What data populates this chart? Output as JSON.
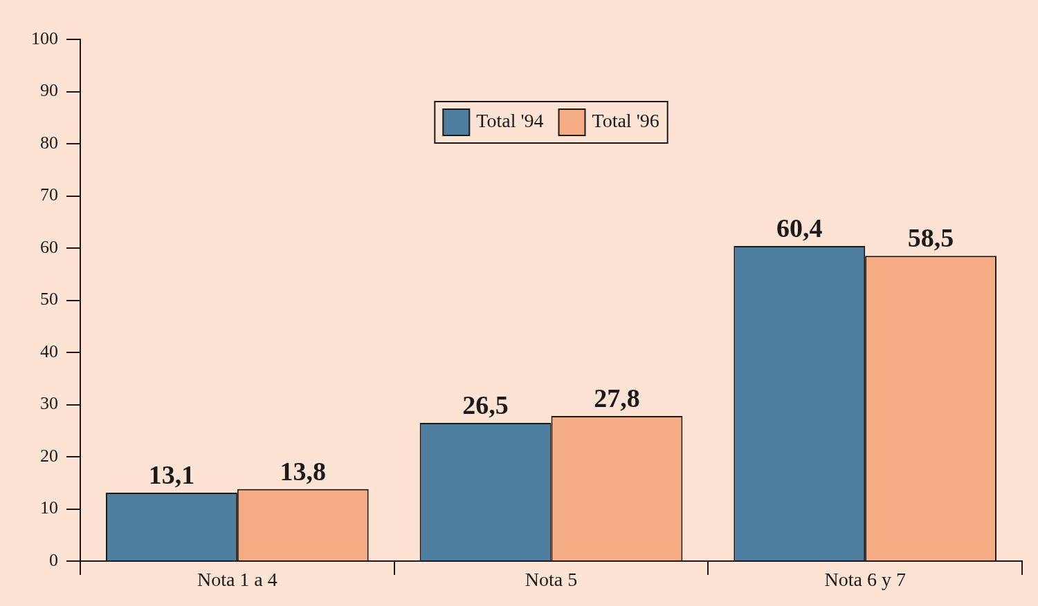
{
  "chart_data": {
    "type": "bar",
    "categories": [
      "Nota 1 a 4",
      "Nota 5",
      "Nota 6 y 7"
    ],
    "series": [
      {
        "name": "Total '94",
        "color": "#4e7fa0",
        "values": [
          13.1,
          26.5,
          60.4
        ],
        "value_labels": [
          "13,1",
          "26,5",
          "60,4"
        ]
      },
      {
        "name": "Total '96",
        "color": "#f5ab83",
        "values": [
          13.8,
          27.8,
          58.5
        ],
        "value_labels": [
          "13,8",
          "27,8",
          "58,5"
        ]
      }
    ],
    "ylim": [
      0,
      100
    ],
    "yticks": [
      0,
      10,
      20,
      30,
      40,
      50,
      60,
      70,
      80,
      90,
      100
    ],
    "grid": false,
    "legend": "top"
  }
}
